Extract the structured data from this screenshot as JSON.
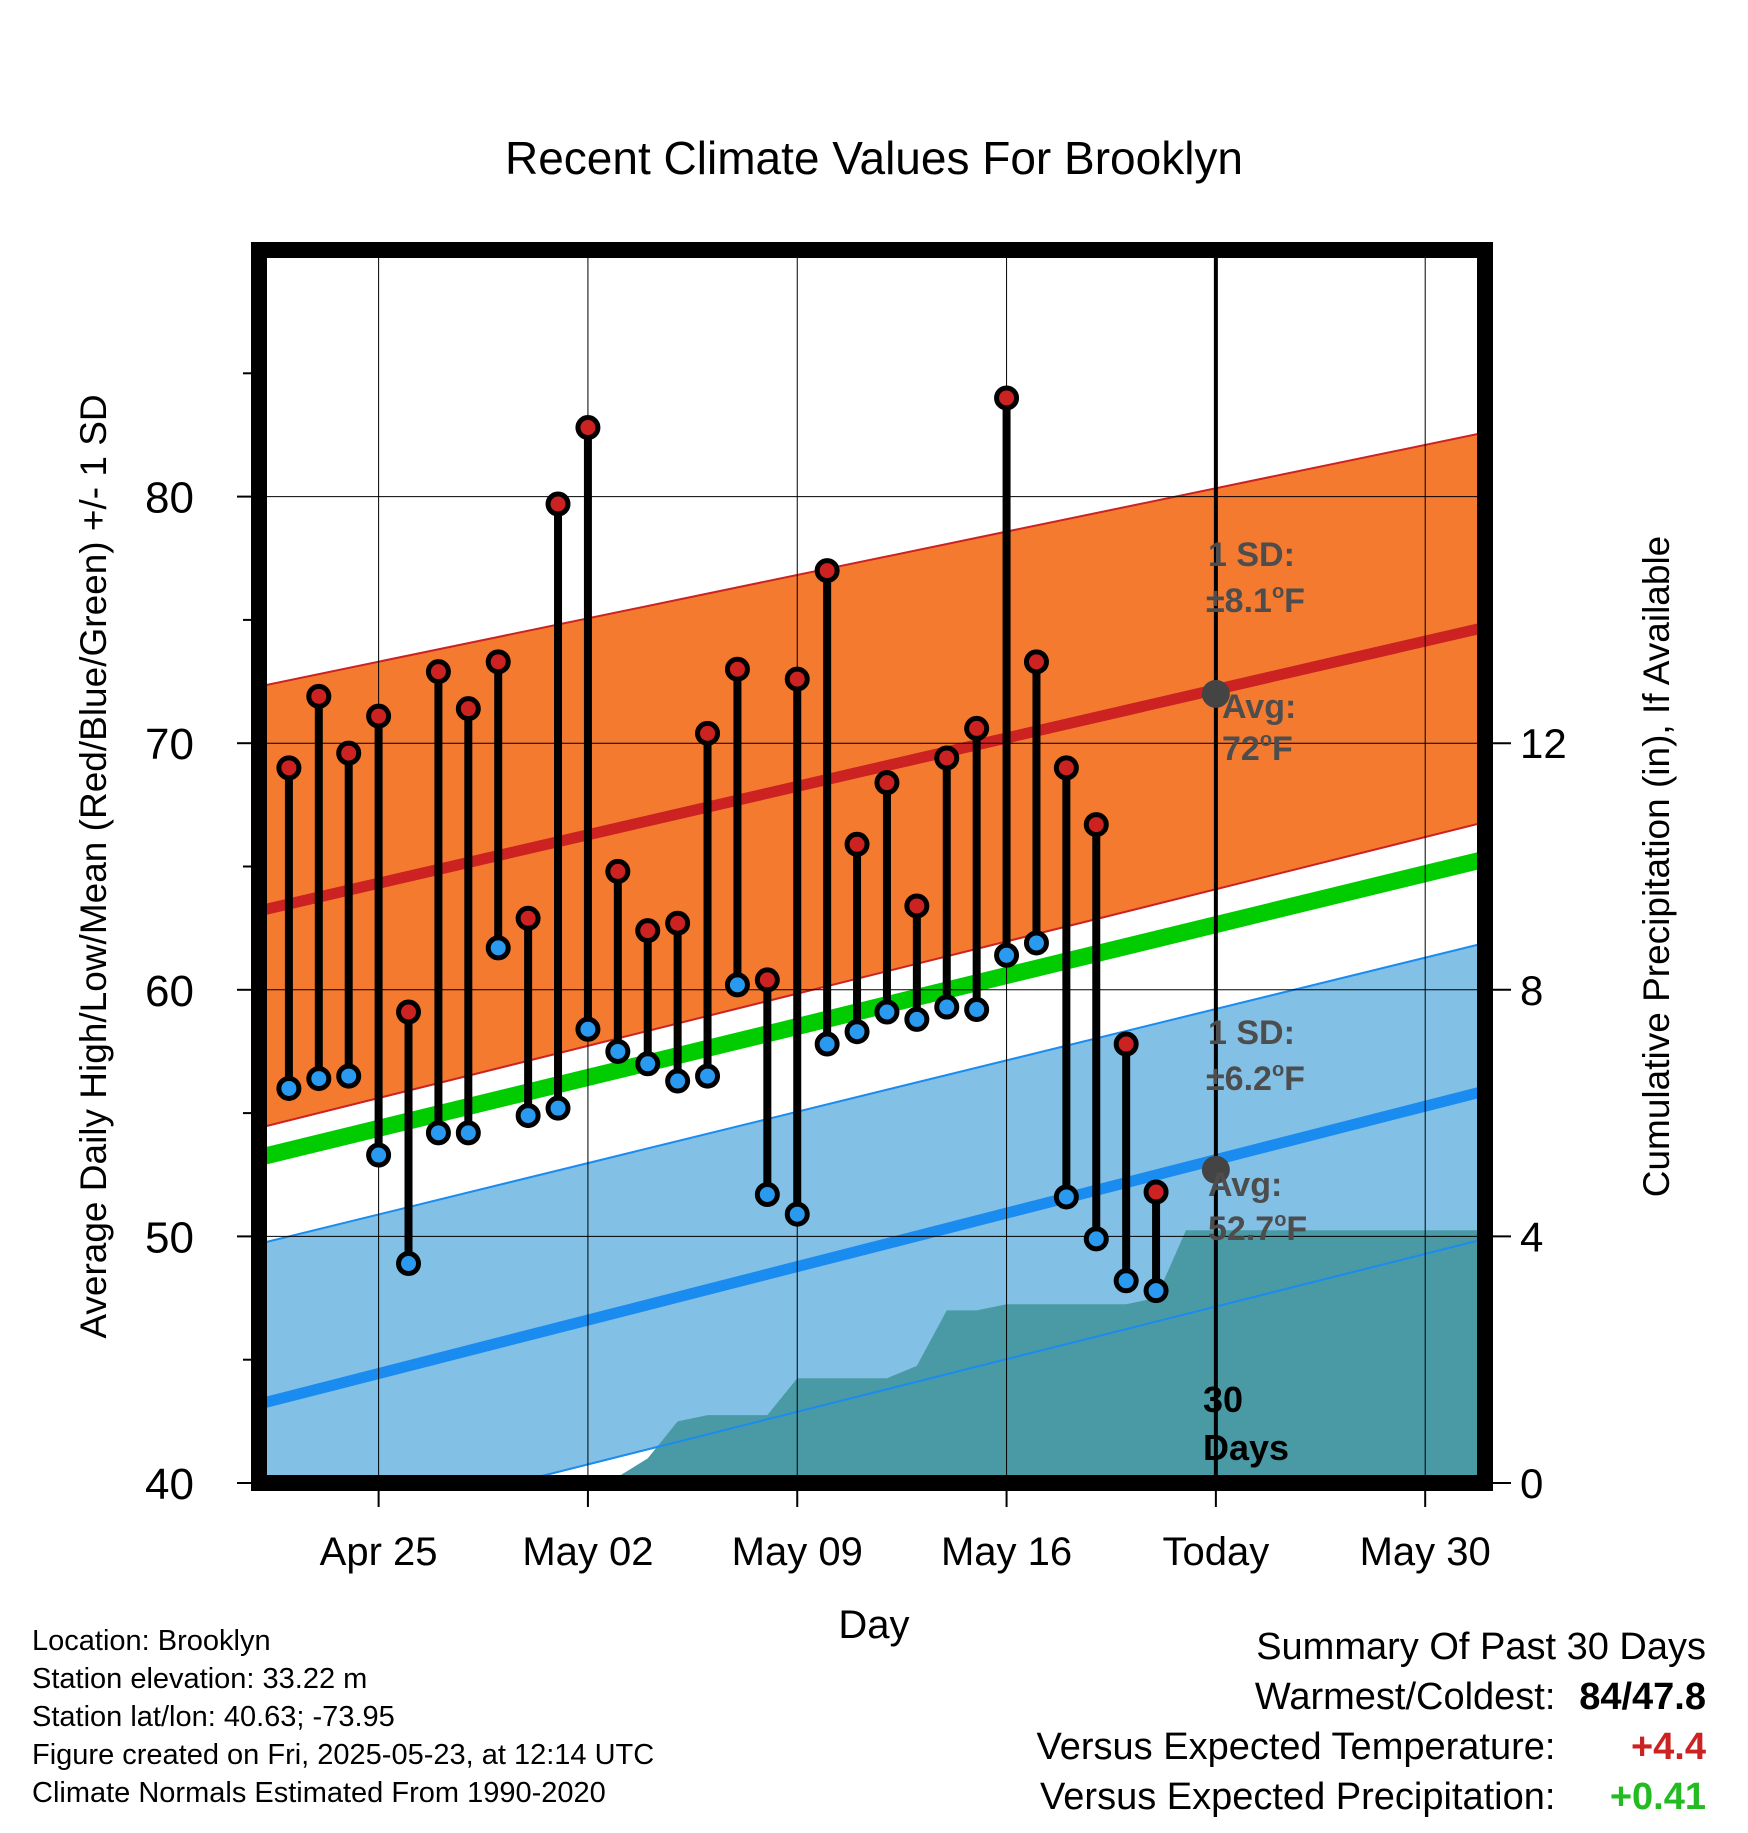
{
  "chart_data": {
    "type": "line",
    "title": "Recent Climate Values For Brooklyn",
    "xlabel": "Day",
    "ylabel": "Average Daily High/Low/Mean (Red/Blue/Green) +/- 1 SD",
    "y2label": "Cumulative Precipitation (in), If Available",
    "ylim": [
      40,
      90
    ],
    "y2lim": [
      0,
      20
    ],
    "xlim": [
      "2025-04-21",
      "2025-06-01"
    ],
    "x_ticks": [
      {
        "date": "2025-04-25",
        "label": "Apr 25"
      },
      {
        "date": "2025-05-02",
        "label": "May 02"
      },
      {
        "date": "2025-05-09",
        "label": "May 09"
      },
      {
        "date": "2025-05-16",
        "label": "May 16"
      },
      {
        "date": "2025-05-23",
        "label": "Today"
      },
      {
        "date": "2025-05-30",
        "label": "May 30"
      }
    ],
    "y_ticks": [
      40,
      50,
      60,
      70,
      80
    ],
    "y2_ticks": [
      0,
      4,
      8,
      12
    ],
    "grid": true,
    "colors": {
      "high_band": "#f47a30",
      "high_avg": "#cc2222",
      "high_edge": "#cc2222",
      "low_band": "#82c0e6",
      "low_avg": "#1a8cf0",
      "low_edge": "#1a8cf0",
      "mean": "#00cc00",
      "precip": "#4a9aa5",
      "high_marker": "#cc2222",
      "low_marker": "#2a9af0",
      "today_marker": "#444444"
    },
    "normals": {
      "high_avg": [
        {
          "x": "2025-04-21",
          "y": 63.2
        },
        {
          "x": "2025-06-01",
          "y": 74.7
        }
      ],
      "high_upper": [
        {
          "x": "2025-04-21",
          "y": 72.3
        },
        {
          "x": "2025-06-01",
          "y": 82.6
        }
      ],
      "high_lower": [
        {
          "x": "2025-04-21",
          "y": 54.4
        },
        {
          "x": "2025-06-01",
          "y": 66.8
        }
      ],
      "low_avg": [
        {
          "x": "2025-04-21",
          "y": 43.2
        },
        {
          "x": "2025-06-01",
          "y": 55.9
        }
      ],
      "low_upper": [
        {
          "x": "2025-04-21",
          "y": 49.7
        },
        {
          "x": "2025-06-01",
          "y": 61.9
        }
      ],
      "low_lower": [
        {
          "x": "2025-04-21",
          "y": 37.4
        },
        {
          "x": "2025-06-01",
          "y": 49.9
        }
      ],
      "mean": [
        {
          "x": "2025-04-21",
          "y": 53.2
        },
        {
          "x": "2025-06-01",
          "y": 65.3
        }
      ]
    },
    "series": [
      {
        "name": "High",
        "x": [
          "2025-04-22",
          "2025-04-23",
          "2025-04-24",
          "2025-04-25",
          "2025-04-26",
          "2025-04-27",
          "2025-04-28",
          "2025-04-29",
          "2025-04-30",
          "2025-05-01",
          "2025-05-02",
          "2025-05-03",
          "2025-05-04",
          "2025-05-05",
          "2025-05-06",
          "2025-05-07",
          "2025-05-08",
          "2025-05-09",
          "2025-05-10",
          "2025-05-11",
          "2025-05-12",
          "2025-05-13",
          "2025-05-14",
          "2025-05-15",
          "2025-05-16",
          "2025-05-17",
          "2025-05-18",
          "2025-05-19",
          "2025-05-20",
          "2025-05-21",
          "2025-05-22"
        ],
        "values": [
          69.0,
          71.9,
          69.6,
          71.1,
          59.1,
          72.9,
          71.4,
          73.3,
          62.9,
          79.7,
          82.8,
          64.8,
          62.4,
          62.7,
          70.4,
          73.0,
          60.4,
          72.6,
          77.0,
          65.9,
          68.4,
          63.4,
          69.4,
          70.6,
          84.0,
          73.3,
          69.0,
          66.7,
          57.8,
          51.8,
          null
        ]
      },
      {
        "name": "Low",
        "x": [
          "2025-04-22",
          "2025-04-23",
          "2025-04-24",
          "2025-04-25",
          "2025-04-26",
          "2025-04-27",
          "2025-04-28",
          "2025-04-29",
          "2025-04-30",
          "2025-05-01",
          "2025-05-02",
          "2025-05-03",
          "2025-05-04",
          "2025-05-05",
          "2025-05-06",
          "2025-05-07",
          "2025-05-08",
          "2025-05-09",
          "2025-05-10",
          "2025-05-11",
          "2025-05-12",
          "2025-05-13",
          "2025-05-14",
          "2025-05-15",
          "2025-05-16",
          "2025-05-17",
          "2025-05-18",
          "2025-05-19",
          "2025-05-20",
          "2025-05-21",
          "2025-05-22"
        ],
        "values": [
          56.0,
          56.4,
          56.5,
          53.3,
          48.9,
          54.2,
          54.2,
          61.7,
          54.9,
          55.2,
          58.4,
          57.5,
          57.0,
          56.3,
          56.5,
          60.2,
          51.7,
          50.9,
          57.8,
          58.3,
          59.1,
          58.8,
          59.3,
          59.2,
          61.4,
          61.9,
          51.6,
          49.9,
          48.2,
          47.8,
          null
        ]
      }
    ],
    "precipitation": [
      {
        "x": "2025-04-21",
        "y": 0
      },
      {
        "x": "2025-05-02",
        "y": 0
      },
      {
        "x": "2025-05-03",
        "y": 0.1
      },
      {
        "x": "2025-05-04",
        "y": 0.4
      },
      {
        "x": "2025-05-05",
        "y": 1.0
      },
      {
        "x": "2025-05-06",
        "y": 1.1
      },
      {
        "x": "2025-05-07",
        "y": 1.1
      },
      {
        "x": "2025-05-08",
        "y": 1.1
      },
      {
        "x": "2025-05-09",
        "y": 1.7
      },
      {
        "x": "2025-05-10",
        "y": 1.7
      },
      {
        "x": "2025-05-11",
        "y": 1.7
      },
      {
        "x": "2025-05-12",
        "y": 1.7
      },
      {
        "x": "2025-05-13",
        "y": 1.9
      },
      {
        "x": "2025-05-14",
        "y": 2.8
      },
      {
        "x": "2025-05-15",
        "y": 2.8
      },
      {
        "x": "2025-05-16",
        "y": 2.9
      },
      {
        "x": "2025-05-17",
        "y": 2.9
      },
      {
        "x": "2025-05-18",
        "y": 2.9
      },
      {
        "x": "2025-05-19",
        "y": 2.9
      },
      {
        "x": "2025-05-20",
        "y": 2.9
      },
      {
        "x": "2025-05-21",
        "y": 3.0
      },
      {
        "x": "2025-05-22",
        "y": 4.1
      },
      {
        "x": "2025-06-01",
        "y": 4.1
      }
    ],
    "today": {
      "date": "2025-05-23",
      "high_avg": 72,
      "low_avg": 52.7
    },
    "annotations": {
      "high_sd": [
        "1 SD:",
        "±8.1",
        "o",
        "F"
      ],
      "high_avg": [
        "Avg:",
        "72",
        "o",
        "F"
      ],
      "low_sd": [
        "1 SD:",
        "±6.2",
        "o",
        "F"
      ],
      "low_avg": [
        "Avg:",
        "52.7",
        "o",
        "F"
      ],
      "days": [
        "30",
        "Days"
      ]
    }
  },
  "footer": {
    "location": "Location: Brooklyn",
    "elevation": "Station elevation: 33.22 m",
    "latlon": "Station lat/lon: 40.63; -73.95",
    "created": "Figure created on Fri, 2025-05-23, at 12:14 UTC",
    "normals": "Climate Normals Estimated From 1990-2020"
  },
  "summary": {
    "title": "Summary Of Past 30 Days",
    "warmest_label": "Warmest/Coldest:",
    "warmest_high": "84",
    "warmest_sep": "/",
    "warmest_low": "47.8",
    "temp_label": "Versus Expected Temperature:",
    "temp_value": "+4.4",
    "precip_label": "Versus Expected Precipitation:",
    "precip_value": "+0.41",
    "temp_color": "#cc2222",
    "precip_color": "#22bb22"
  }
}
